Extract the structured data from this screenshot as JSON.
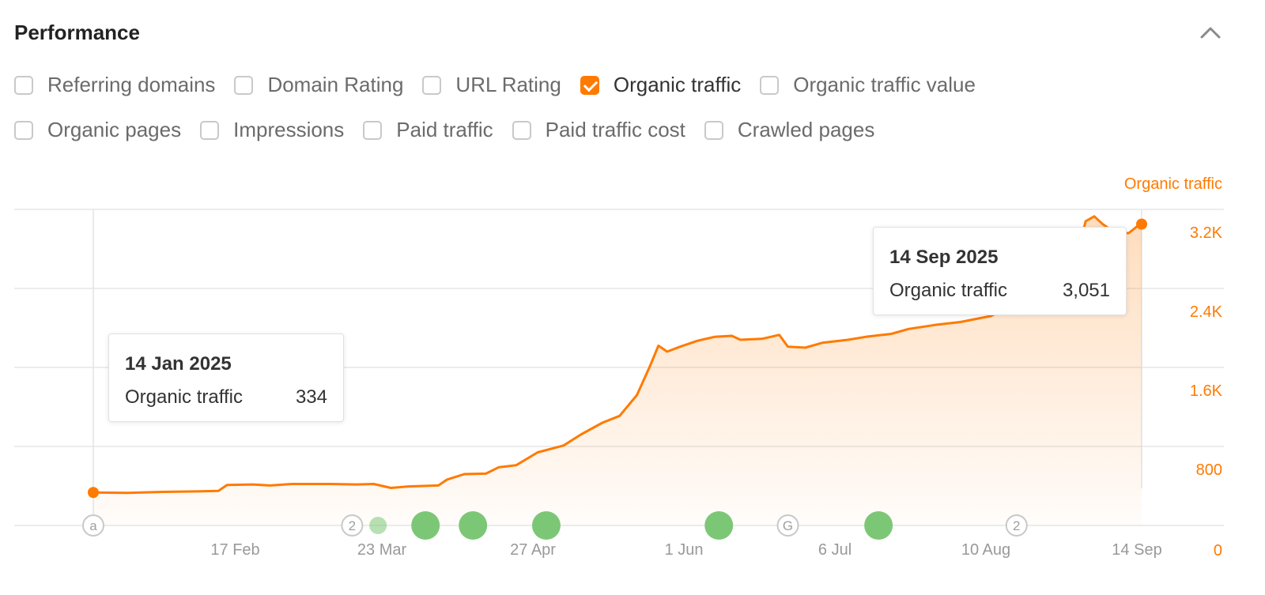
{
  "panel": {
    "title": "Performance"
  },
  "metrics_row1": [
    {
      "label": "Referring domains",
      "checked": false
    },
    {
      "label": "Domain Rating",
      "checked": false
    },
    {
      "label": "URL Rating",
      "checked": false
    },
    {
      "label": "Organic traffic",
      "checked": true
    },
    {
      "label": "Organic traffic value",
      "checked": false
    }
  ],
  "metrics_row2": [
    {
      "label": "Organic pages",
      "checked": false
    },
    {
      "label": "Impressions",
      "checked": false
    },
    {
      "label": "Paid traffic",
      "checked": false
    },
    {
      "label": "Paid traffic cost",
      "checked": false
    },
    {
      "label": "Crawled pages",
      "checked": false
    }
  ],
  "colors": {
    "accent": "#ff7a00",
    "marker_green": "#7cc776",
    "grid": "#e6e6e6",
    "axis_text": "#999999"
  },
  "tooltips": [
    {
      "date": "14 Jan 2025",
      "label": "Organic traffic",
      "value": "334"
    },
    {
      "date": "14 Sep 2025",
      "label": "Organic traffic",
      "value": "3,051"
    }
  ],
  "chart_data": {
    "type": "area",
    "series_label": "Organic traffic",
    "x_ticks": [
      "17 Feb",
      "23 Mar",
      "27 Apr",
      "1 Jun",
      "6 Jul",
      "10 Aug",
      "14 Sep"
    ],
    "y_ticks": [
      "0",
      "800",
      "1.6K",
      "2.4K",
      "3.2K"
    ],
    "ylim": [
      0,
      3200
    ],
    "xlim": [
      "2025-01-14",
      "2025-09-14"
    ],
    "grid": true,
    "series": [
      {
        "name": "Organic traffic",
        "points": [
          [
            "2025-01-14",
            334
          ],
          [
            "2025-01-22",
            330
          ],
          [
            "2025-01-30",
            340
          ],
          [
            "2025-02-07",
            345
          ],
          [
            "2025-02-12",
            350
          ],
          [
            "2025-02-14",
            410
          ],
          [
            "2025-02-20",
            415
          ],
          [
            "2025-02-24",
            405
          ],
          [
            "2025-03-01",
            420
          ],
          [
            "2025-03-10",
            420
          ],
          [
            "2025-03-16",
            415
          ],
          [
            "2025-03-20",
            420
          ],
          [
            "2025-03-24",
            380
          ],
          [
            "2025-03-28",
            395
          ],
          [
            "2025-04-04",
            405
          ],
          [
            "2025-04-06",
            465
          ],
          [
            "2025-04-10",
            520
          ],
          [
            "2025-04-15",
            525
          ],
          [
            "2025-04-18",
            590
          ],
          [
            "2025-04-22",
            610
          ],
          [
            "2025-04-27",
            740
          ],
          [
            "2025-05-03",
            810
          ],
          [
            "2025-05-07",
            920
          ],
          [
            "2025-05-12",
            1040
          ],
          [
            "2025-05-16",
            1110
          ],
          [
            "2025-05-20",
            1320
          ],
          [
            "2025-05-23",
            1610
          ],
          [
            "2025-05-25",
            1820
          ],
          [
            "2025-05-27",
            1760
          ],
          [
            "2025-05-30",
            1810
          ],
          [
            "2025-06-03",
            1870
          ],
          [
            "2025-06-07",
            1910
          ],
          [
            "2025-06-11",
            1920
          ],
          [
            "2025-06-13",
            1880
          ],
          [
            "2025-06-18",
            1890
          ],
          [
            "2025-06-22",
            1930
          ],
          [
            "2025-06-24",
            1810
          ],
          [
            "2025-06-28",
            1800
          ],
          [
            "2025-07-02",
            1850
          ],
          [
            "2025-07-08",
            1880
          ],
          [
            "2025-07-12",
            1910
          ],
          [
            "2025-07-18",
            1940
          ],
          [
            "2025-07-22",
            1990
          ],
          [
            "2025-07-28",
            2030
          ],
          [
            "2025-08-03",
            2060
          ],
          [
            "2025-08-10",
            2120
          ],
          [
            "2025-08-16",
            2240
          ],
          [
            "2025-08-20",
            2380
          ],
          [
            "2025-08-25",
            2540
          ],
          [
            "2025-08-30",
            2720
          ],
          [
            "2025-09-01",
            3080
          ],
          [
            "2025-09-03",
            3130
          ],
          [
            "2025-09-05",
            3050
          ],
          [
            "2025-09-08",
            2960
          ],
          [
            "2025-09-11",
            2960
          ],
          [
            "2025-09-13",
            3030
          ],
          [
            "2025-09-14",
            3051
          ]
        ]
      }
    ],
    "event_markers": [
      {
        "date": "2025-01-14",
        "label": "a",
        "kind": "annotation"
      },
      {
        "date": "2025-03-15",
        "label": "2",
        "kind": "annotation"
      },
      {
        "date": "2025-03-21",
        "label": "",
        "kind": "small"
      },
      {
        "date": "2025-04-01",
        "label": "",
        "kind": "update"
      },
      {
        "date": "2025-04-12",
        "label": "",
        "kind": "update"
      },
      {
        "date": "2025-04-29",
        "label": "",
        "kind": "update"
      },
      {
        "date": "2025-06-08",
        "label": "",
        "kind": "update"
      },
      {
        "date": "2025-06-24",
        "label": "G",
        "kind": "annotation"
      },
      {
        "date": "2025-07-15",
        "label": "",
        "kind": "update"
      },
      {
        "date": "2025-08-16",
        "label": "2",
        "kind": "annotation"
      }
    ]
  }
}
